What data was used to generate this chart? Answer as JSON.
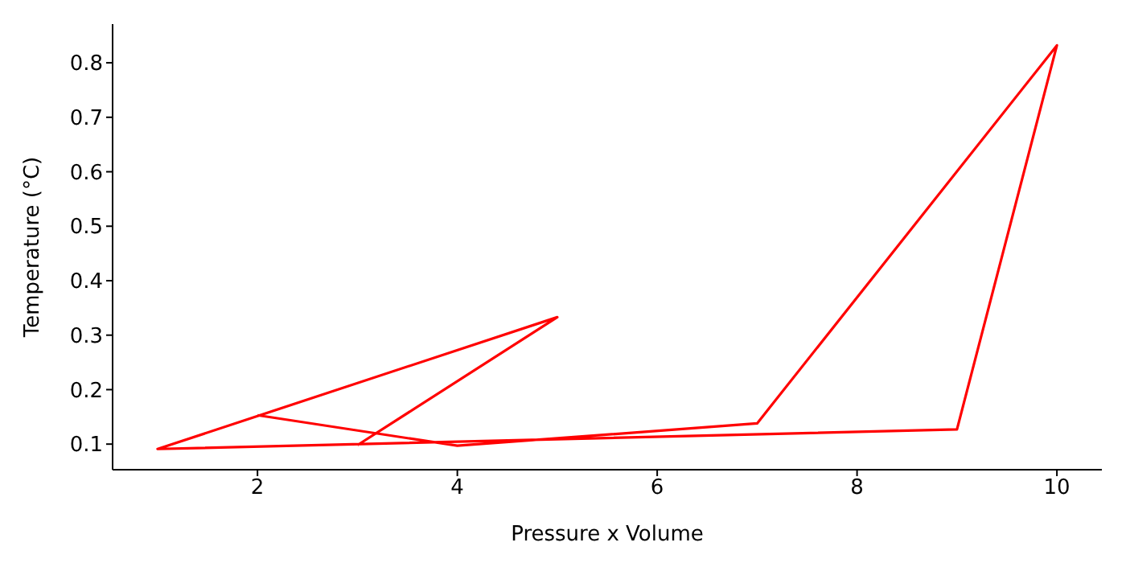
{
  "chart_data": {
    "type": "line",
    "xlabel": "Pressure x Volume",
    "ylabel": "Temperature (°C)",
    "x": [
      3,
      5,
      1,
      9,
      10,
      7,
      4,
      2
    ],
    "series": [
      {
        "color": "#ff0000",
        "values": [
          0.098,
          0.333,
          0.091,
          0.127,
          0.832,
          0.138,
          0.097,
          0.153
        ]
      }
    ],
    "xlim": [
      0.55,
      10.45
    ],
    "ylim": [
      0.053,
      0.871
    ],
    "xticks": [
      2,
      4,
      6,
      8,
      10
    ],
    "yticks": [
      0.1,
      0.2,
      0.3,
      0.4,
      0.5,
      0.6,
      0.7,
      0.8
    ],
    "grid": false,
    "legend": false,
    "marker": "none",
    "line_style": "solid"
  }
}
